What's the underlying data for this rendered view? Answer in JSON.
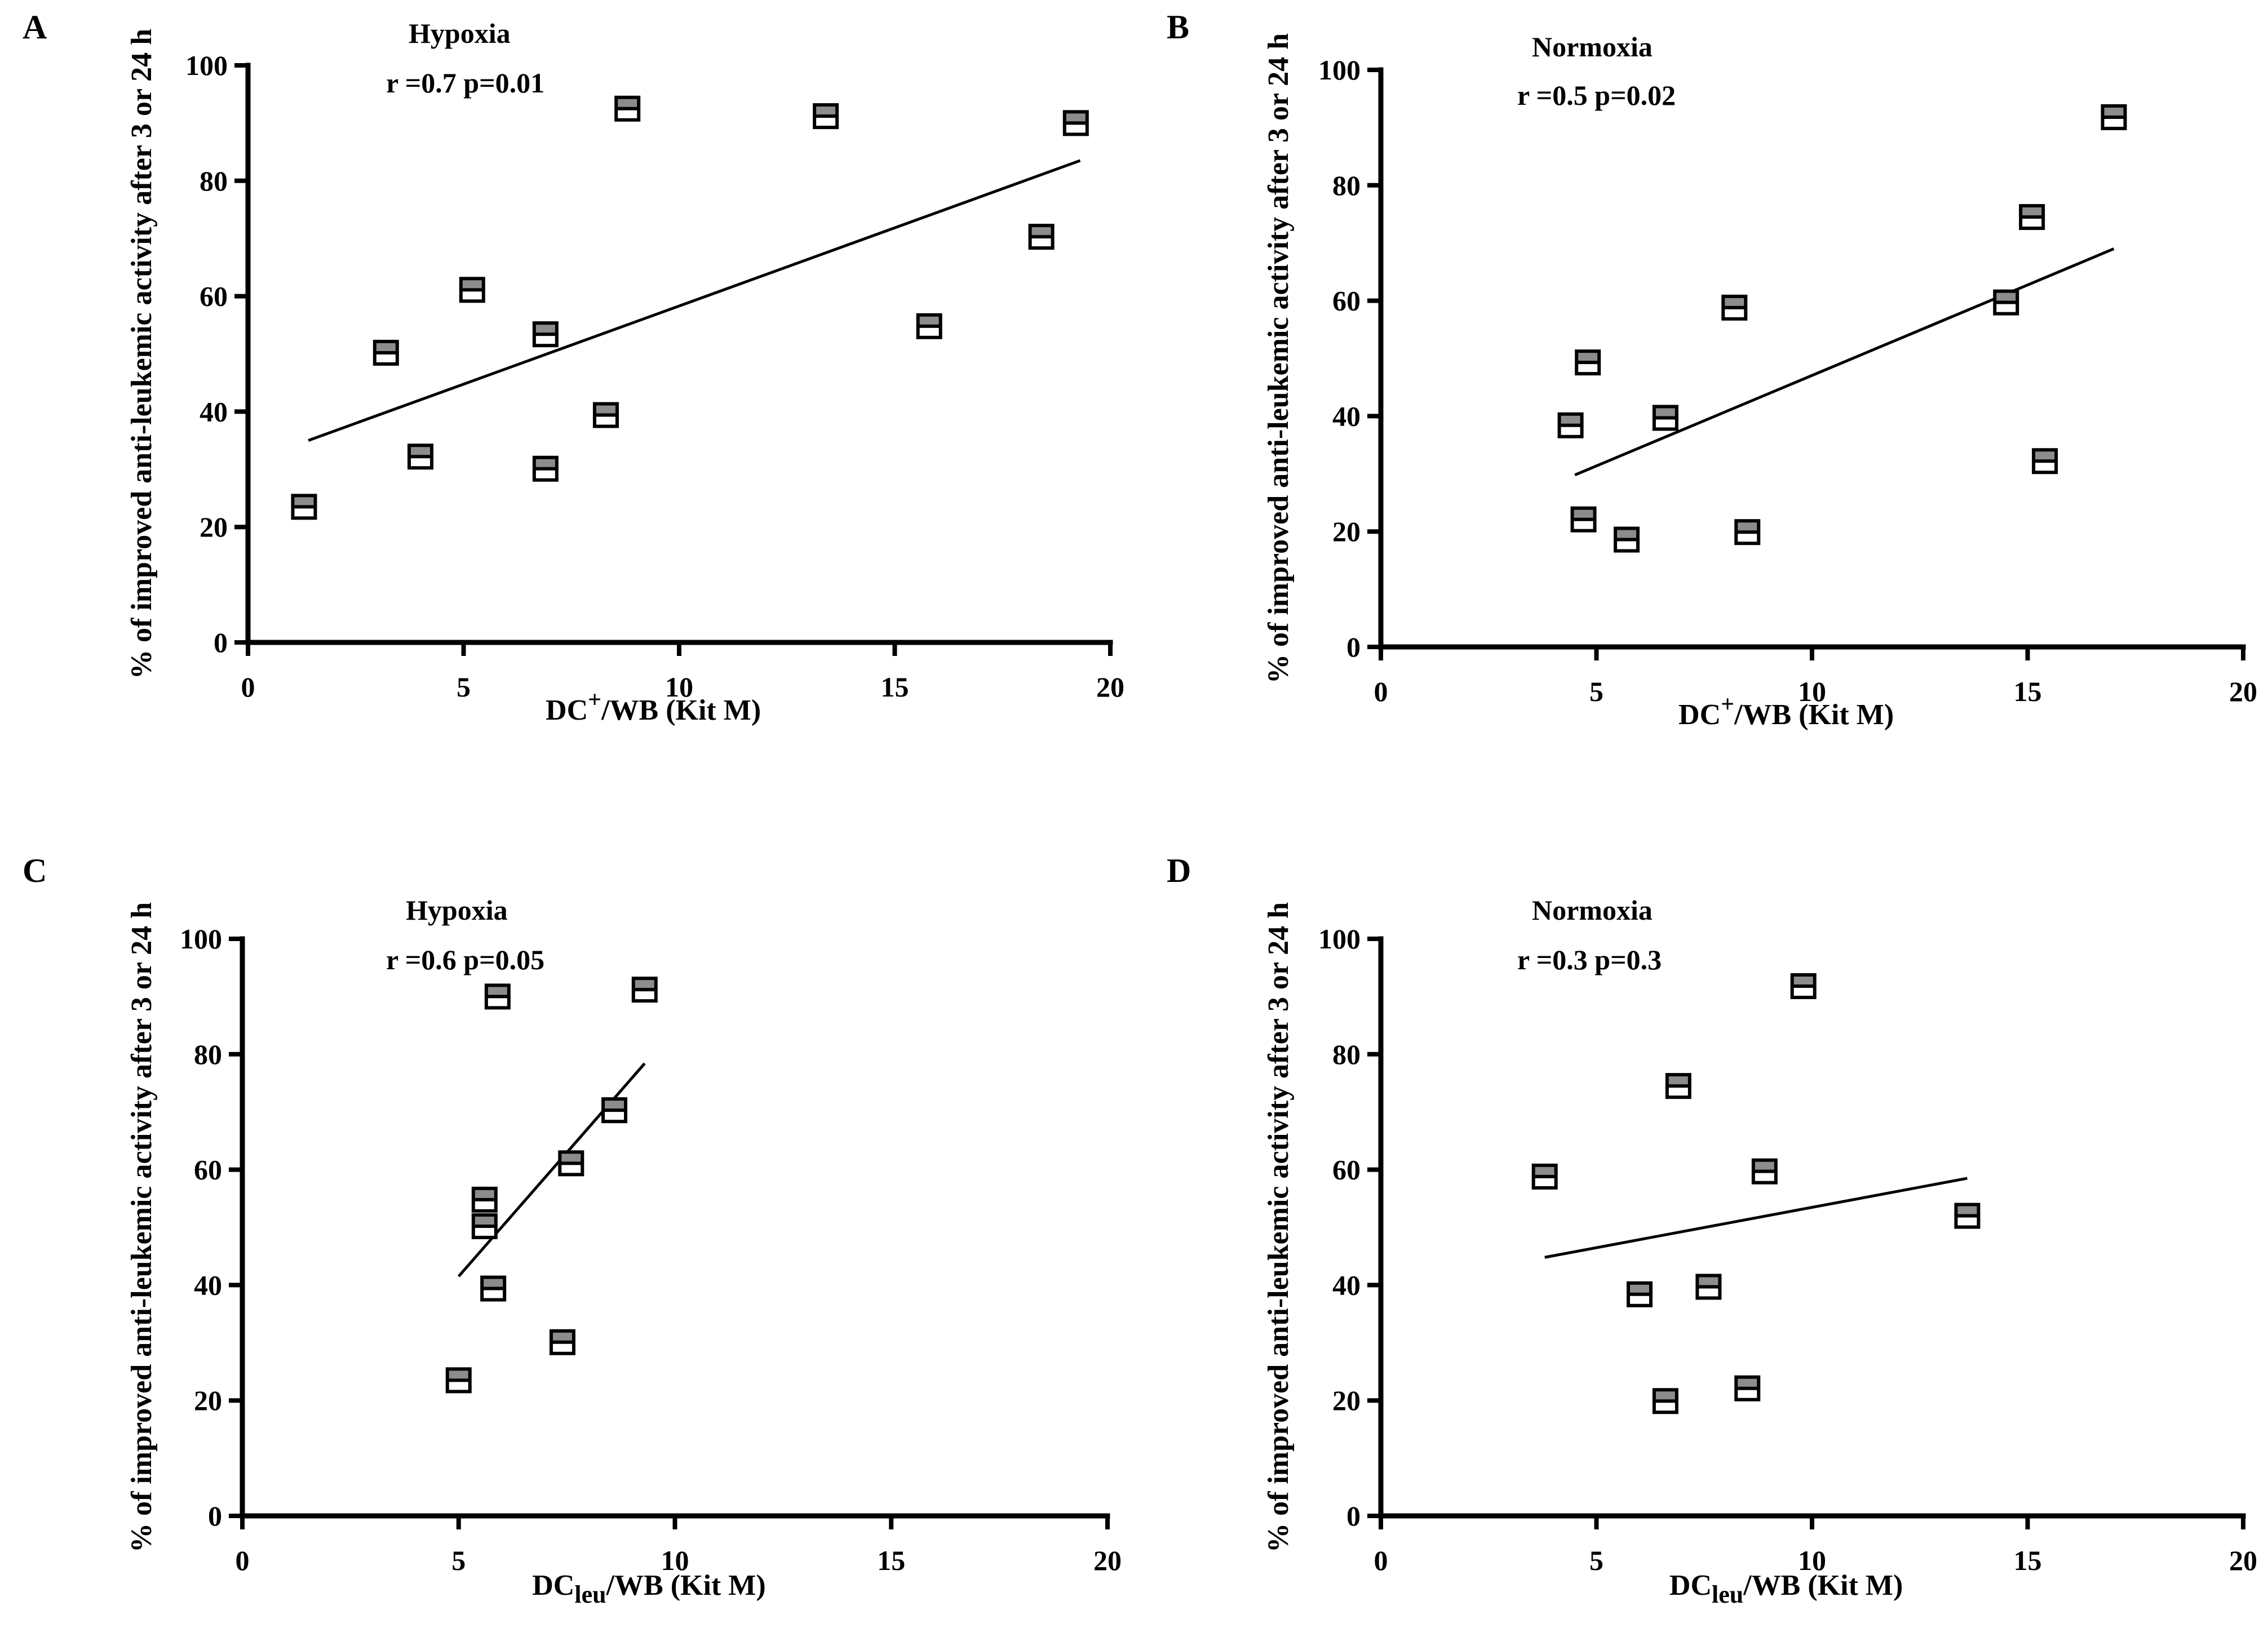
{
  "chart_data": [
    {
      "panel": "A",
      "type": "scatter",
      "title": "Hypoxia",
      "stats": "r =0.7  p=0.01",
      "xlabel": {
        "main": "DC",
        "sup": "+",
        "sub": "",
        "rest": "/WB (Kit M)"
      },
      "ylabel": "% of improved anti-leukemic activity after 3 or 24 h",
      "xlim": [
        0,
        20
      ],
      "ylim": [
        0,
        100
      ],
      "xticks": [
        0,
        5,
        10,
        15,
        20
      ],
      "yticks": [
        0,
        20,
        40,
        60,
        80,
        100
      ],
      "points": [
        [
          1.3,
          23.5
        ],
        [
          3.2,
          50.2
        ],
        [
          4.0,
          32.2
        ],
        [
          5.2,
          61.1
        ],
        [
          6.9,
          53.4
        ],
        [
          6.9,
          30.1
        ],
        [
          8.3,
          39.4
        ],
        [
          8.8,
          92.5
        ],
        [
          13.4,
          91.2
        ],
        [
          15.8,
          54.8
        ],
        [
          18.4,
          70.3
        ],
        [
          19.2,
          90.0
        ]
      ],
      "trendline": [
        [
          1.4,
          35.0
        ],
        [
          19.3,
          83.5
        ]
      ]
    },
    {
      "panel": "B",
      "type": "scatter",
      "title": "Normoxia",
      "stats": "r =0.5  p=0.02",
      "xlabel": {
        "main": "DC",
        "sup": "+",
        "sub": "",
        "rest": "/WB (Kit M)"
      },
      "ylabel": "% of improved anti-leukemic activity after 3 or 24 h",
      "xlim": [
        0,
        20
      ],
      "ylim": [
        0,
        100
      ],
      "xticks": [
        0,
        5,
        10,
        15,
        20
      ],
      "yticks": [
        0,
        20,
        40,
        60,
        80,
        100
      ],
      "points": [
        [
          4.4,
          38.4
        ],
        [
          4.8,
          49.3
        ],
        [
          4.7,
          22.1
        ],
        [
          5.7,
          18.6
        ],
        [
          6.6,
          39.7
        ],
        [
          8.2,
          58.8
        ],
        [
          8.5,
          19.9
        ],
        [
          14.5,
          59.7
        ],
        [
          15.1,
          74.5
        ],
        [
          15.4,
          32.2
        ],
        [
          17.0,
          91.8
        ]
      ],
      "trendline": [
        [
          4.5,
          29.8
        ],
        [
          17.0,
          69.0
        ]
      ]
    },
    {
      "panel": "C",
      "type": "scatter",
      "title": "Hypoxia",
      "stats": "r =0.6  p=0.05",
      "xlabel": {
        "main": "DC",
        "sup": "",
        "sub": "leu",
        "rest": "/WB (Kit M)"
      },
      "ylabel": "% of improved anti-leukemic activity after 3 or 24 h",
      "xlim": [
        0,
        20
      ],
      "ylim": [
        0,
        100
      ],
      "xticks": [
        0,
        5,
        10,
        15,
        20
      ],
      "yticks": [
        0,
        20,
        40,
        60,
        80,
        100
      ],
      "points": [
        [
          5.0,
          23.5
        ],
        [
          5.6,
          54.8
        ],
        [
          5.6,
          50.2
        ],
        [
          5.8,
          39.4
        ],
        [
          5.9,
          90.0
        ],
        [
          7.4,
          30.1
        ],
        [
          7.6,
          61.1
        ],
        [
          8.6,
          70.3
        ],
        [
          9.3,
          91.2
        ]
      ],
      "trendline": [
        [
          5.0,
          41.5
        ],
        [
          9.3,
          78.4
        ]
      ]
    },
    {
      "panel": "D",
      "type": "scatter",
      "title": "Normoxia",
      "stats": "r =0.3  p=0.3",
      "xlabel": {
        "main": "DC",
        "sup": "",
        "sub": "leu",
        "rest": "/WB (Kit M)"
      },
      "ylabel": "% of improved anti-leukemic activity after 3 or 24 h",
      "xlim": [
        0,
        20
      ],
      "ylim": [
        0,
        100
      ],
      "xticks": [
        0,
        5,
        10,
        15,
        20
      ],
      "yticks": [
        0,
        20,
        40,
        60,
        80,
        100
      ],
      "points": [
        [
          3.8,
          58.8
        ],
        [
          6.0,
          38.4
        ],
        [
          6.6,
          19.9
        ],
        [
          6.9,
          74.5
        ],
        [
          7.6,
          39.7
        ],
        [
          8.5,
          22.1
        ],
        [
          8.9,
          59.7
        ],
        [
          9.8,
          91.8
        ],
        [
          13.6,
          52.0
        ]
      ],
      "trendline": [
        [
          3.8,
          44.8
        ],
        [
          13.6,
          58.5
        ]
      ]
    }
  ]
}
